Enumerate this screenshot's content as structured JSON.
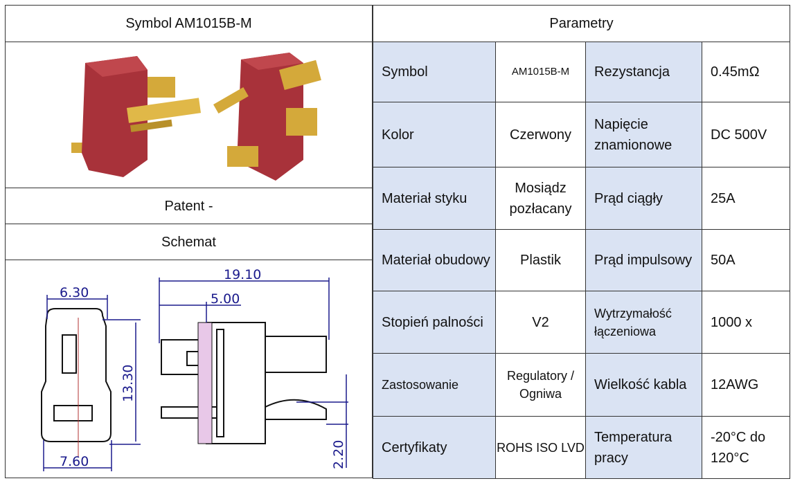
{
  "left": {
    "title": "Symbol  AM1015B-M",
    "patent": "Patent -",
    "schemat": "Schemat",
    "dimensions": {
      "top_width": "6.30",
      "bottom_width": "7.60",
      "height": "13.30",
      "length": "19.10",
      "offset": "5.00",
      "pin_height": "2.20"
    }
  },
  "right": {
    "title": "Parametry",
    "rows": [
      {
        "l1": "Symbol",
        "v1": "AM1015B-M",
        "l2": "Rezystancja",
        "v2": "0.45mΩ"
      },
      {
        "l1": "Kolor",
        "v1": "Czerwony",
        "l2": "Napięcie znamionowe",
        "v2": "DC 500V"
      },
      {
        "l1": "Materiał styku",
        "v1": "Mosiądz pozłacany",
        "l2": "Prąd ciągły",
        "v2": "25A"
      },
      {
        "l1": "Materiał obudowy",
        "v1": "Plastik",
        "l2": "Prąd impulsowy",
        "v2": "50A"
      },
      {
        "l1": "Stopień palności",
        "v1": "V2",
        "l2": "Wytrzymałość łączeniowa",
        "v2": "1000 x"
      },
      {
        "l1": "Zastosowanie",
        "v1": "Regulatory / Ogniwa",
        "l2": "Wielkość kabla",
        "v2": "12AWG"
      },
      {
        "l1": "Certyfikaty",
        "v1": "ROHS ISO LVD",
        "l2": "Temperatura pracy",
        "v2": "-20°C do 120°C"
      }
    ]
  },
  "colors": {
    "label_bg": "#dae3f3",
    "connector_red": "#a8323a",
    "gold": "#d4a93a",
    "dimension_blue": "#1a1a8c"
  }
}
